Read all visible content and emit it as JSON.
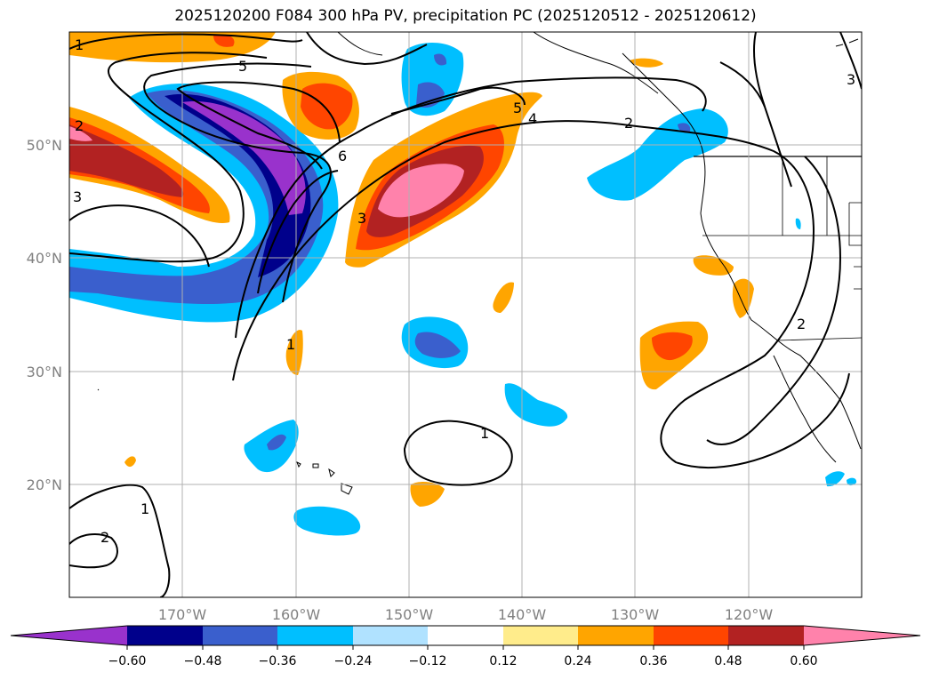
{
  "title": "2025120200 F084 300 hPa PV, precipitation PC (2025120512 - 2025120612)",
  "lat_labels": [
    "50°N",
    "40°N",
    "30°N",
    "20°N"
  ],
  "lon_labels": [
    "170°W",
    "160°W",
    "150°W",
    "140°W",
    "130°W",
    "120°W"
  ],
  "contour_labels": [
    "1",
    "5",
    "2",
    "3",
    "6",
    "3",
    "5",
    "4",
    "2",
    "3",
    "1",
    "2",
    "1",
    "2",
    "1"
  ],
  "colorbar": {
    "ticks": [
      "−0.60",
      "−0.48",
      "−0.36",
      "−0.24",
      "−0.12",
      "0.12",
      "0.24",
      "0.36",
      "0.48",
      "0.60"
    ],
    "colors": [
      "#9932CC",
      "#00008B",
      "#3A5FCD",
      "#00BFFF",
      "#B0E2FF",
      "#FFFFFF",
      "#FFEC8B",
      "#FFA500",
      "#FF4500",
      "#B22222",
      "#FF82AB"
    ]
  }
}
